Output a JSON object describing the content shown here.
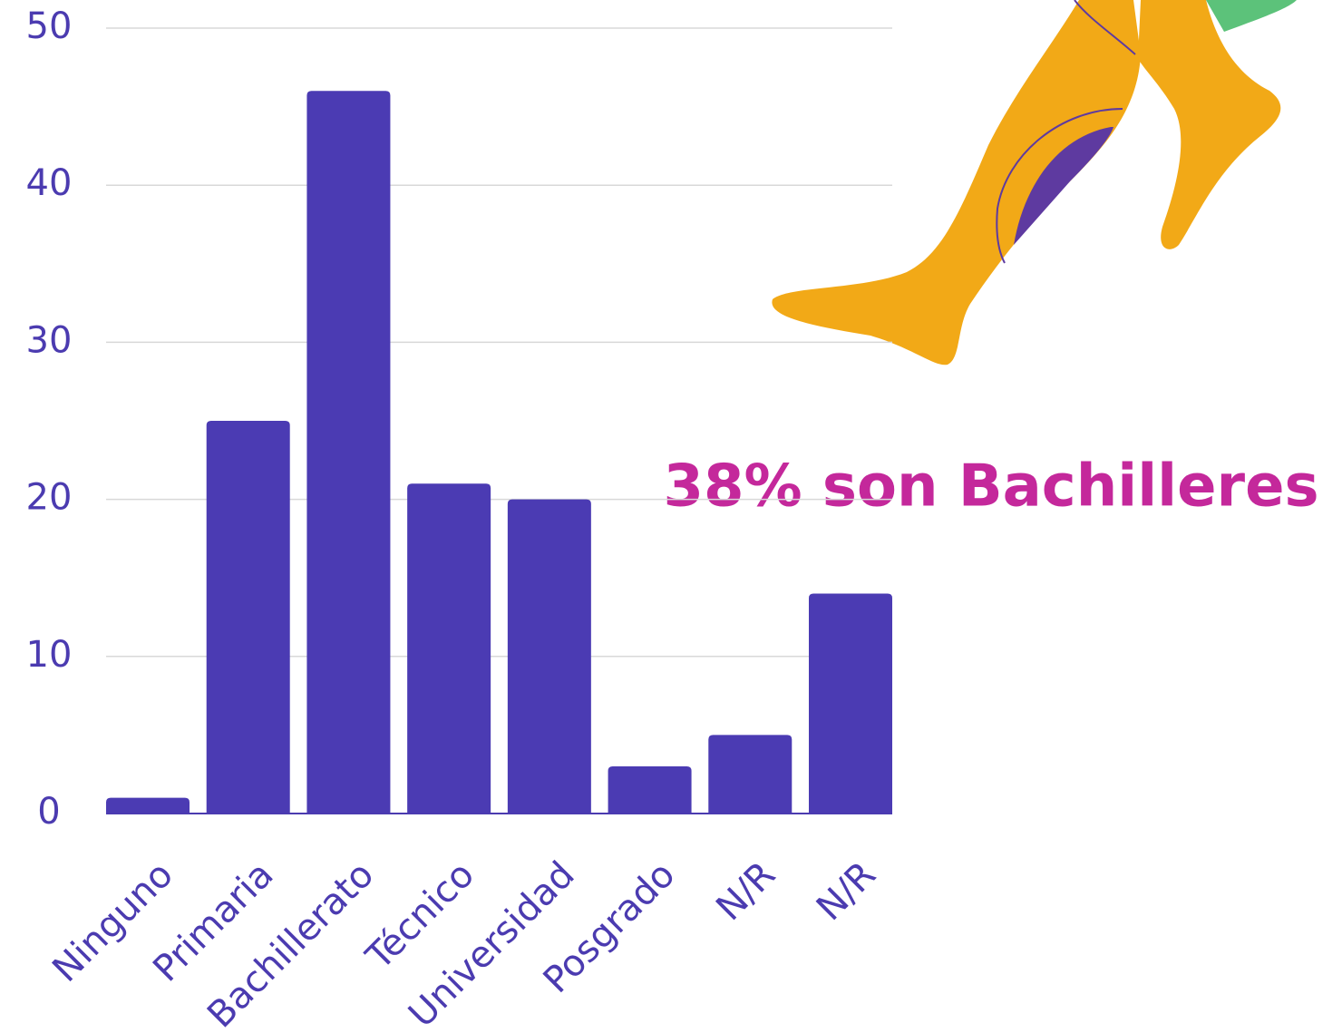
{
  "chart_data": {
    "type": "bar",
    "categories": [
      "Ninguno",
      "Primaria",
      "Bachillerato",
      "Técnico",
      "Universidad",
      "Posgrado",
      "N/R",
      "N/R"
    ],
    "values": [
      1,
      25,
      46,
      21,
      20,
      3,
      5,
      14
    ],
    "color": "#4b3bb3",
    "ylim": [
      0,
      50
    ],
    "yticks": [
      0,
      10,
      20,
      30,
      40,
      50
    ],
    "grid": true,
    "annotation": "38% son Bachilleres"
  }
}
